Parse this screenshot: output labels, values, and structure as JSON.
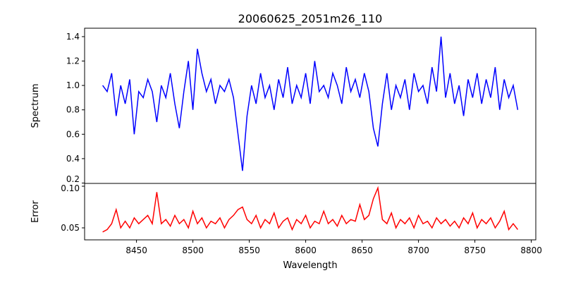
{
  "chart_data": {
    "type": "line",
    "title": "20060625_2051m26_110",
    "xlabel": "Wavelength",
    "x_start": 8420,
    "x_step": 4,
    "xlim": [
      8404,
      8804
    ],
    "xticks": [
      8450,
      8500,
      8550,
      8600,
      8650,
      8700,
      8750,
      8800
    ],
    "panels": [
      {
        "name": "spectrum",
        "ylabel": "Spectrum",
        "color": "#0000ff",
        "ylim": [
          0.197,
          1.469
        ],
        "yticks": [
          0.2,
          0.4,
          0.6,
          0.8,
          1.0,
          1.2,
          1.4
        ],
        "ytick_labels": [
          "0.2",
          "0.4",
          "0.6",
          "0.8",
          "1.0",
          "1.2",
          "1.4"
        ],
        "values": [
          1.0,
          0.95,
          1.1,
          0.75,
          1.0,
          0.85,
          1.05,
          0.6,
          0.95,
          0.9,
          1.05,
          0.95,
          0.7,
          1.0,
          0.9,
          1.1,
          0.85,
          0.65,
          0.95,
          1.2,
          0.8,
          1.3,
          1.1,
          0.95,
          1.05,
          0.85,
          1.0,
          0.95,
          1.05,
          0.9,
          0.6,
          0.3,
          0.75,
          1.0,
          0.85,
          1.1,
          0.9,
          1.0,
          0.8,
          1.05,
          0.9,
          1.15,
          0.85,
          1.0,
          0.9,
          1.1,
          0.85,
          1.2,
          0.95,
          1.0,
          0.9,
          1.1,
          1.0,
          0.85,
          1.15,
          0.95,
          1.05,
          0.9,
          1.1,
          0.95,
          0.65,
          0.5,
          0.85,
          1.1,
          0.8,
          1.0,
          0.9,
          1.05,
          0.8,
          1.1,
          0.95,
          1.0,
          0.85,
          1.15,
          0.95,
          1.4,
          0.9,
          1.1,
          0.85,
          1.0,
          0.75,
          1.05,
          0.9,
          1.1,
          0.85,
          1.05,
          0.9,
          1.15,
          0.8,
          1.05,
          0.9,
          1.0,
          0.8
        ]
      },
      {
        "name": "error",
        "ylabel": "Error",
        "color": "#ff0000",
        "ylim": [
          0.0356,
          0.1034
        ],
        "yticks": [
          0.05,
          0.1
        ],
        "ytick_labels": [
          "0.05",
          "0.10"
        ],
        "values": [
          0.045,
          0.048,
          0.055,
          0.072,
          0.05,
          0.058,
          0.05,
          0.062,
          0.055,
          0.06,
          0.065,
          0.055,
          0.093,
          0.055,
          0.06,
          0.052,
          0.065,
          0.055,
          0.06,
          0.05,
          0.07,
          0.055,
          0.062,
          0.05,
          0.058,
          0.055,
          0.062,
          0.05,
          0.06,
          0.065,
          0.072,
          0.075,
          0.06,
          0.055,
          0.065,
          0.05,
          0.06,
          0.055,
          0.068,
          0.05,
          0.058,
          0.062,
          0.048,
          0.06,
          0.055,
          0.065,
          0.05,
          0.058,
          0.055,
          0.07,
          0.055,
          0.06,
          0.052,
          0.065,
          0.055,
          0.06,
          0.058,
          0.078,
          0.06,
          0.065,
          0.085,
          0.098,
          0.06,
          0.055,
          0.068,
          0.05,
          0.06,
          0.055,
          0.062,
          0.05,
          0.065,
          0.055,
          0.058,
          0.05,
          0.062,
          0.055,
          0.06,
          0.052,
          0.058,
          0.05,
          0.062,
          0.055,
          0.068,
          0.05,
          0.06,
          0.055,
          0.062,
          0.05,
          0.058,
          0.07,
          0.048,
          0.055,
          0.048
        ]
      }
    ]
  }
}
